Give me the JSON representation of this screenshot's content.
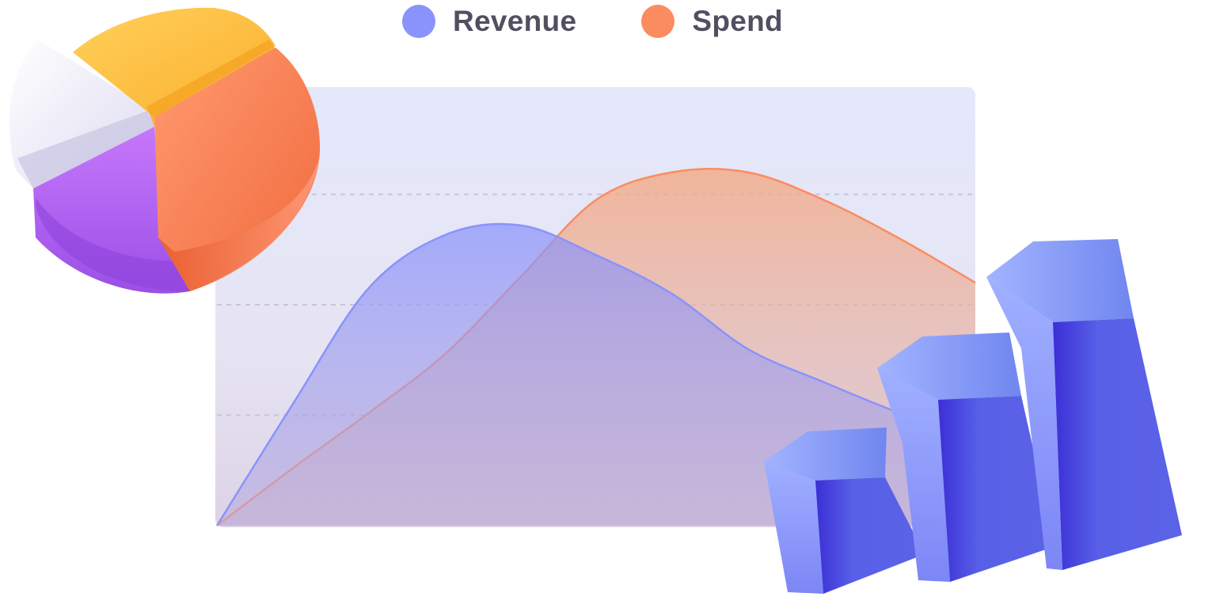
{
  "colors": {
    "revenue": "#8a93fb",
    "spend": "#fb8c5f",
    "panel_top": "#e3e7fb",
    "panel_bottom": "#d8cfe4",
    "gridline": "#c4c6d8"
  },
  "chart_data": {
    "type": "area",
    "title": "",
    "xlabel": "",
    "ylabel": "",
    "grid": true,
    "gridlines": [
      1,
      2,
      3
    ],
    "legend_position": "top-center",
    "x": [
      0,
      1,
      2,
      3,
      4,
      5,
      6,
      7,
      8,
      9,
      10
    ],
    "xlim": [
      0,
      10
    ],
    "ylim": [
      0,
      4
    ],
    "series": [
      {
        "name": "Revenue",
        "color": "#8a93fb",
        "values": [
          0,
          1.1,
          2.15,
          2.63,
          2.72,
          2.45,
          2.1,
          1.6,
          1.3,
          1.02,
          0.78
        ]
      },
      {
        "name": "Spend",
        "color": "#fb8c5f",
        "values": [
          0,
          0.52,
          1.02,
          1.55,
          2.25,
          2.95,
          3.2,
          3.2,
          2.95,
          2.6,
          2.2
        ]
      }
    ]
  },
  "decorations": {
    "pie_icon": "3d-pie-chart-icon",
    "bars_icon": "3d-bar-chart-icon"
  }
}
